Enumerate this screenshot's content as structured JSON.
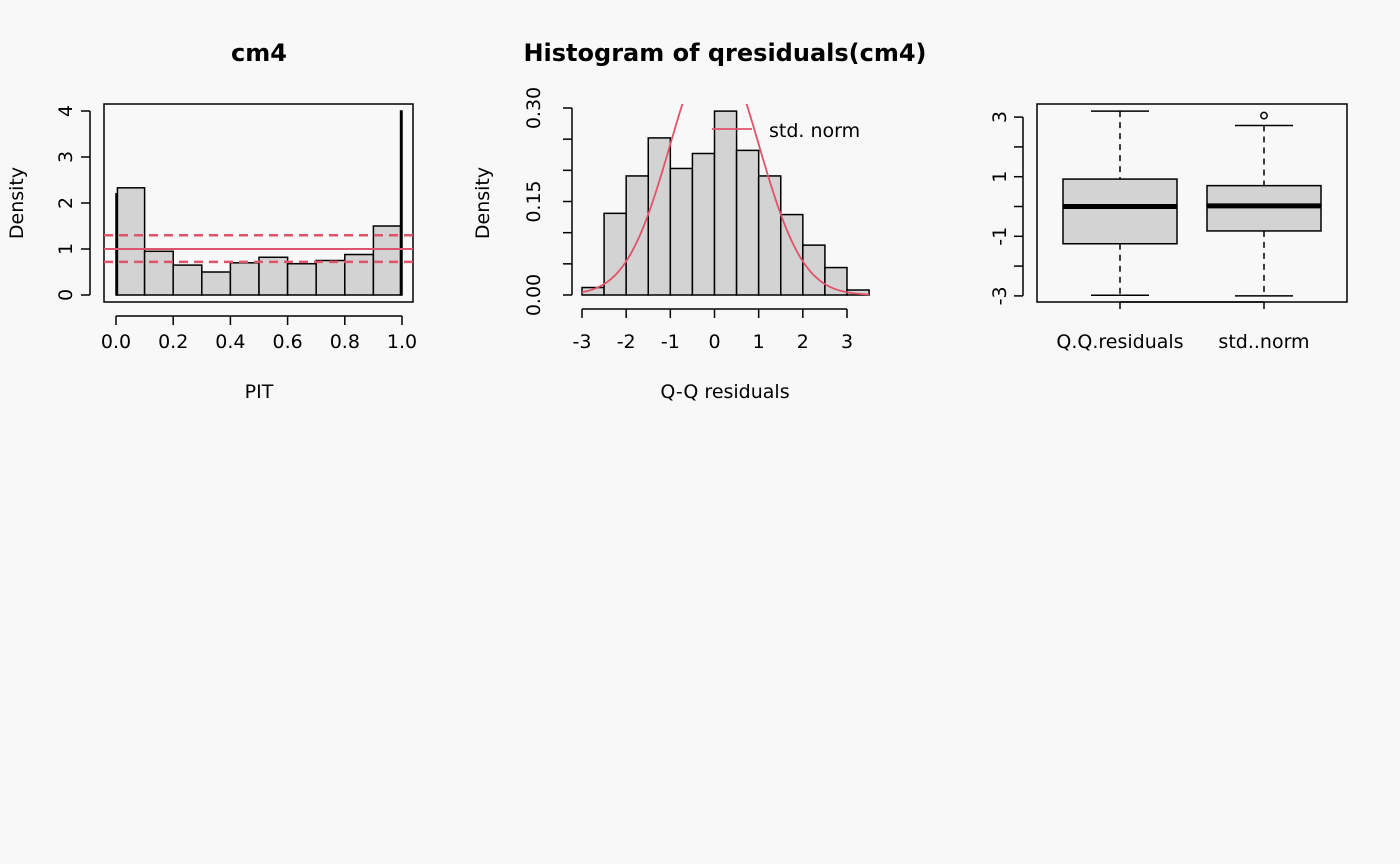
{
  "chart_data": [
    {
      "type": "bar",
      "title": "cm4",
      "xlabel": "PIT",
      "ylabel": "Density",
      "xlim": [
        0,
        1
      ],
      "ylim": [
        0,
        4
      ],
      "x_ticks": [
        "0.0",
        "0.2",
        "0.4",
        "0.6",
        "0.8",
        "1.0"
      ],
      "y_ticks": [
        "0",
        "1",
        "2",
        "3",
        "4"
      ],
      "bins": [
        {
          "x0": 0.0,
          "x1": 0.005,
          "y": 2.2
        },
        {
          "x0": 0.005,
          "x1": 0.1,
          "y": 2.33
        },
        {
          "x0": 0.1,
          "x1": 0.2,
          "y": 0.95
        },
        {
          "x0": 0.2,
          "x1": 0.3,
          "y": 0.65
        },
        {
          "x0": 0.3,
          "x1": 0.4,
          "y": 0.5
        },
        {
          "x0": 0.4,
          "x1": 0.5,
          "y": 0.7
        },
        {
          "x0": 0.5,
          "x1": 0.6,
          "y": 0.82
        },
        {
          "x0": 0.6,
          "x1": 0.7,
          "y": 0.68
        },
        {
          "x0": 0.7,
          "x1": 0.8,
          "y": 0.75
        },
        {
          "x0": 0.8,
          "x1": 0.9,
          "y": 0.88
        },
        {
          "x0": 0.9,
          "x1": 0.995,
          "y": 1.5
        },
        {
          "x0": 0.995,
          "x1": 1.0,
          "y": 4.0
        }
      ],
      "reference_line": 1.0,
      "reference_band": [
        0.72,
        1.3
      ],
      "line_color": "#DF536B",
      "bar_color": "#D3D3D3"
    },
    {
      "type": "bar",
      "title": "Histogram of qresiduals(cm4)",
      "xlabel": "Q-Q residuals",
      "ylabel": "Density",
      "xlim": [
        -3,
        3.5
      ],
      "ylim": [
        0,
        0.3
      ],
      "x_ticks": [
        "-3",
        "-2",
        "-1",
        "0",
        "1",
        "2",
        "3"
      ],
      "y_ticks": [
        "0.00",
        "0.15",
        "0.30"
      ],
      "y_minor_ticks": [
        0.05,
        0.1,
        0.2,
        0.25
      ],
      "bins": [
        {
          "x0": -3.0,
          "x1": -2.5,
          "y": 0.012
        },
        {
          "x0": -2.5,
          "x1": -2.0,
          "y": 0.131
        },
        {
          "x0": -2.0,
          "x1": -1.5,
          "y": 0.191
        },
        {
          "x0": -1.5,
          "x1": -1.0,
          "y": 0.252
        },
        {
          "x0": -1.0,
          "x1": -0.5,
          "y": 0.203
        },
        {
          "x0": -0.5,
          "x1": 0.0,
          "y": 0.227
        },
        {
          "x0": 0.0,
          "x1": 0.5,
          "y": 0.295
        },
        {
          "x0": 0.5,
          "x1": 1.0,
          "y": 0.232
        },
        {
          "x0": 1.0,
          "x1": 1.5,
          "y": 0.191
        },
        {
          "x0": 1.5,
          "x1": 2.0,
          "y": 0.129
        },
        {
          "x0": 2.0,
          "x1": 2.5,
          "y": 0.08
        },
        {
          "x0": 2.5,
          "x1": 3.0,
          "y": 0.044
        },
        {
          "x0": 3.0,
          "x1": 3.5,
          "y": 0.008
        }
      ],
      "curve": "standard normal density",
      "legend": [
        "std. norm"
      ],
      "legend_position": "top-right",
      "line_color": "#DF536B",
      "bar_color": "#D3D3D3"
    },
    {
      "type": "box",
      "ylim": [
        -3.1,
        3.1
      ],
      "y_ticks": [
        "-3",
        "-1",
        "1",
        "3"
      ],
      "y_minor_ticks": [
        -2,
        0,
        2
      ],
      "categories": [
        "Q.Q.residuals",
        "std..norm"
      ],
      "boxes": [
        {
          "whisker_low": -2.98,
          "q1": -1.25,
          "median": 0.0,
          "q3": 0.92,
          "whisker_high": 3.2,
          "outliers": []
        },
        {
          "whisker_low": -3.0,
          "q1": -0.82,
          "median": 0.02,
          "q3": 0.7,
          "whisker_high": 2.72,
          "outliers": [
            3.05
          ]
        }
      ],
      "box_color": "#D3D3D3"
    }
  ]
}
